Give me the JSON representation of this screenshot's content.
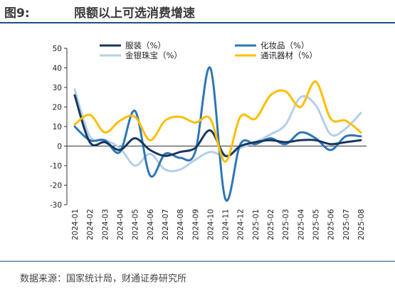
{
  "header": {
    "figure_label": "图9:",
    "title": "限额以上可选消费增速"
  },
  "source": "数据来源：国家统计局，财通证券研究所",
  "chart_data": {
    "type": "line",
    "title": "限额以上可选消费增速",
    "xlabel": "",
    "ylabel": "",
    "ylim": [
      -30,
      50
    ],
    "yticks": [
      -30,
      -20,
      -10,
      0,
      10,
      20,
      30,
      40,
      50
    ],
    "grid": false,
    "legend": "top",
    "x_ticklabels": [
      "2024-01",
      "2024-02",
      "2024-03",
      "2024-04",
      "2024-05",
      "2024-06",
      "2024-07",
      "2024-08",
      "2024-09",
      "2024-10",
      "2024-11",
      "2024-12",
      "2025-01",
      "2025-02",
      "2025-03",
      "2025-04",
      "2025-05",
      "2025-06",
      "2025-07",
      "2025-08"
    ],
    "x": [
      "2024-01",
      "2024-02",
      "2024-03",
      "2024-04",
      "2024-05",
      "2024-06",
      "2024-07",
      "2024-08",
      "2024-09",
      "2024-10",
      "2024-11",
      "2024-12",
      "2025-01",
      "2025-02",
      "2025-03",
      "2025-04",
      "2025-05",
      "2025-06",
      "2025-07",
      "2025-08"
    ],
    "series": [
      {
        "name": "服装（%）",
        "color": "#17375e",
        "values": [
          26,
          2,
          2,
          -2,
          4,
          -2,
          -5,
          -3,
          -1,
          8,
          -5,
          0,
          2,
          3,
          2,
          3,
          3,
          1,
          2,
          3
        ]
      },
      {
        "name": "化妆品（%）",
        "color": "#2e75b6",
        "values": [
          10,
          3,
          3,
          -3,
          18,
          -15,
          -4,
          -6,
          -3,
          40,
          -27,
          1,
          1,
          4,
          1,
          7,
          4,
          -2,
          5,
          5
        ]
      },
      {
        "name": "金银珠宝（%）",
        "color": "#b4cfea",
        "values": [
          29,
          5,
          3,
          -1,
          -10,
          -4,
          -12,
          -12,
          -7,
          -3,
          -5,
          -1,
          2,
          6,
          11,
          25,
          21,
          6,
          9,
          17
        ]
      },
      {
        "name": "通讯器材（%）",
        "color": "#fcbf00",
        "values": [
          11,
          16,
          7,
          13,
          15,
          3,
          13,
          15,
          12,
          14,
          -8,
          15,
          14,
          26,
          28,
          20,
          33,
          14,
          13,
          7
        ]
      }
    ]
  }
}
